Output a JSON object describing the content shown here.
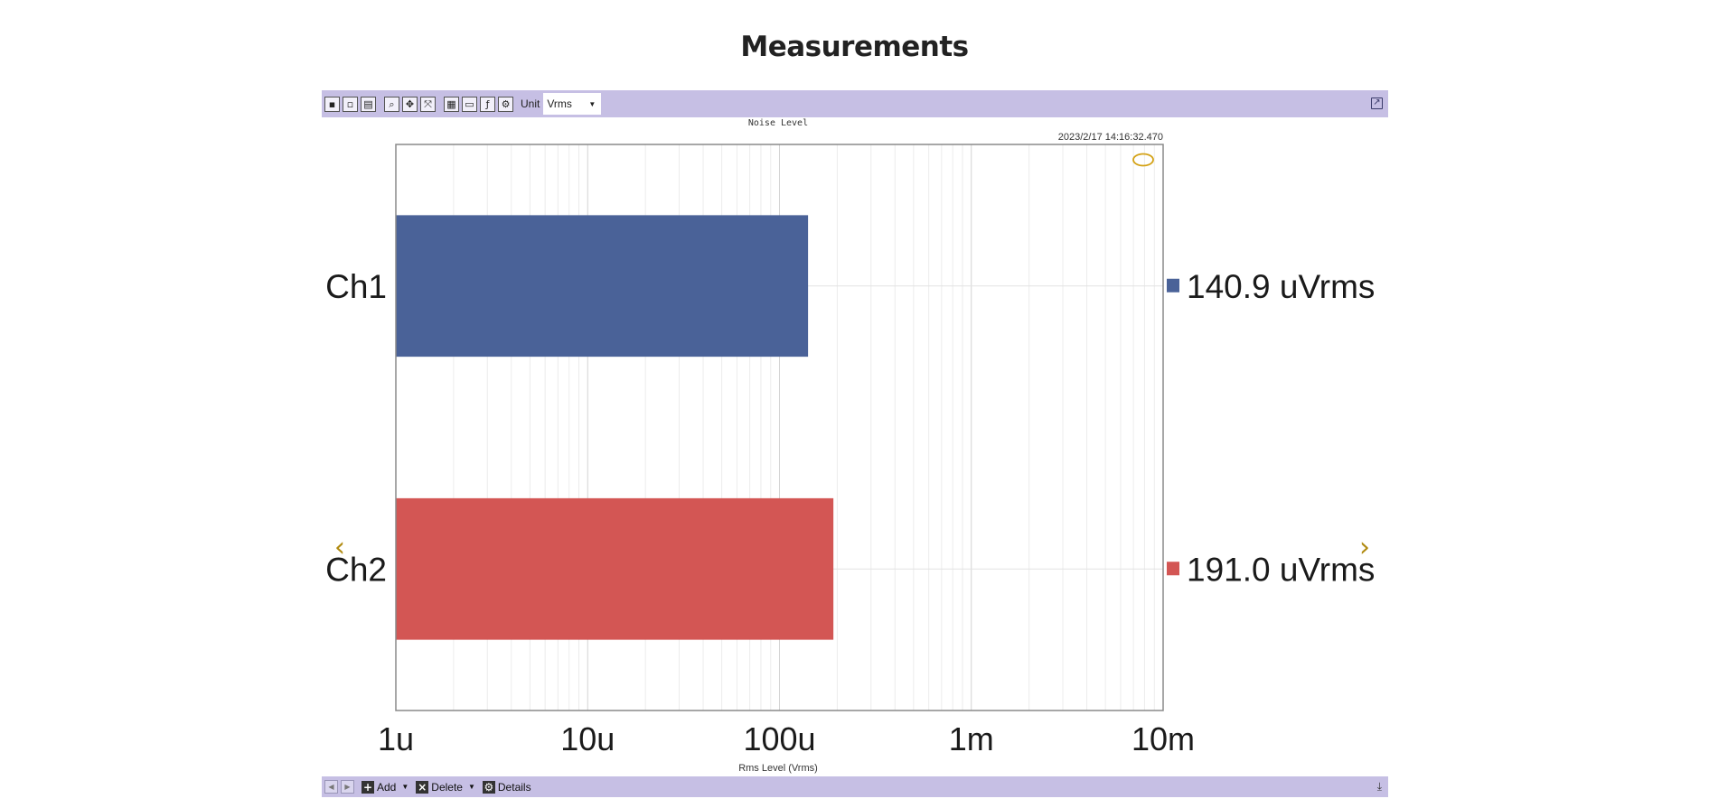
{
  "page": {
    "title": "Measurements"
  },
  "toolbar": {
    "unit_label": "Unit",
    "unit_value": "Vrms",
    "buttons": [
      "save-icon",
      "save-as-icon",
      "print-icon",
      "zoom-icon",
      "pan-icon",
      "fit-icon",
      "table-icon",
      "screen-icon",
      "fx-icon",
      "settings-icon"
    ]
  },
  "footer": {
    "add_label": "Add",
    "delete_label": "Delete",
    "details_label": "Details"
  },
  "chart_data": {
    "type": "bar",
    "orientation": "horizontal",
    "title": "Noise Level",
    "timestamp": "2023/2/17 14:16:32.470",
    "xlabel": "Rms Level (Vrms)",
    "x_scale": "log",
    "xlim": [
      1e-06,
      0.01
    ],
    "x_ticks": [
      {
        "value": 1e-06,
        "label": "1u"
      },
      {
        "value": 1e-05,
        "label": "10u"
      },
      {
        "value": 0.0001,
        "label": "100u"
      },
      {
        "value": 0.001,
        "label": "1m"
      },
      {
        "value": 0.01,
        "label": "10m"
      }
    ],
    "grid": true,
    "categories": [
      "Ch1",
      "Ch2"
    ],
    "values": [
      0.0001409,
      0.000191
    ],
    "value_labels": [
      "140.9 uVrms",
      "191.0 uVrms"
    ],
    "colors": [
      "#4a6298",
      "#d35654"
    ]
  }
}
